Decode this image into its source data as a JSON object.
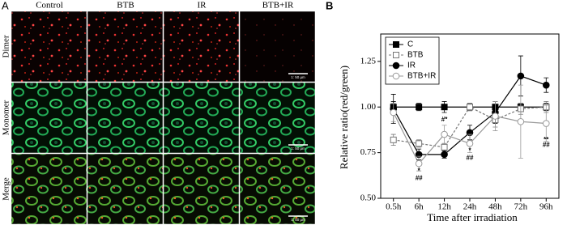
{
  "panel_a": {
    "label": "A",
    "columns": [
      "Control",
      "BTB",
      "IR",
      "BTB+IR"
    ],
    "rows": [
      "Dimer",
      "Monomer",
      "Merge"
    ],
    "scale_bar": "1: 50 μm"
  },
  "chart_data": {
    "type": "line",
    "panel_label": "B",
    "x_label": "Time after irradiation",
    "y_label": "Relative ratio(red/green)",
    "categories": [
      "0.5h",
      "6h",
      "12h",
      "24h",
      "48h",
      "72h",
      "96h"
    ],
    "ylim": [
      0.5,
      1.4
    ],
    "yticks": [
      {
        "value": 0.5,
        "label": "0.50"
      },
      {
        "value": 0.75,
        "label": "0.75"
      },
      {
        "value": 1.0,
        "label": "1.00"
      },
      {
        "value": 1.25,
        "label": "1.25"
      }
    ],
    "legend": "upper left",
    "series": [
      {
        "name": "C",
        "color": "#000000",
        "marker": "square",
        "filled": true,
        "dashed": false,
        "values": [
          1.0,
          1.0,
          1.0,
          1.0,
          1.0,
          1.0,
          1.0
        ],
        "errors": [
          0.03,
          0.02,
          0.03,
          0.02,
          0.03,
          0.02,
          0.02
        ]
      },
      {
        "name": "BTB",
        "color": "#777777",
        "marker": "square",
        "filled": false,
        "dashed": true,
        "values": [
          0.82,
          0.8,
          0.78,
          1.0,
          0.93,
          0.99,
          1.0
        ],
        "errors": [
          0.03,
          0.02,
          0.02,
          0.02,
          0.04,
          0.03,
          0.03
        ]
      },
      {
        "name": "IR",
        "color": "#000000",
        "marker": "circle",
        "filled": true,
        "dashed": false,
        "values": [
          0.99,
          0.74,
          0.74,
          0.86,
          0.97,
          1.17,
          1.12
        ],
        "errors": [
          0.08,
          0.03,
          0.02,
          0.04,
          0.06,
          0.11,
          0.04
        ]
      },
      {
        "name": "BTB+IR",
        "color": "#999999",
        "marker": "circle",
        "filled": false,
        "dashed": false,
        "values": [
          0.97,
          0.69,
          0.85,
          0.8,
          0.95,
          0.92,
          0.91
        ],
        "errors": [
          0.05,
          0.04,
          0.05,
          0.05,
          0.08,
          0.2,
          0.1
        ]
      }
    ],
    "annotations": [
      {
        "text": "*",
        "x": "6h",
        "y": 0.65
      },
      {
        "text": "##",
        "x": "6h",
        "y": 0.61
      },
      {
        "text": "#*",
        "x": "12h",
        "y": 0.93
      },
      {
        "text": "*",
        "x": "24h",
        "y": 0.76
      },
      {
        "text": "##",
        "x": "24h",
        "y": 0.72
      },
      {
        "text": "**",
        "x": "96h",
        "y": 0.82
      },
      {
        "text": "##",
        "x": "96h",
        "y": 0.79
      }
    ]
  }
}
